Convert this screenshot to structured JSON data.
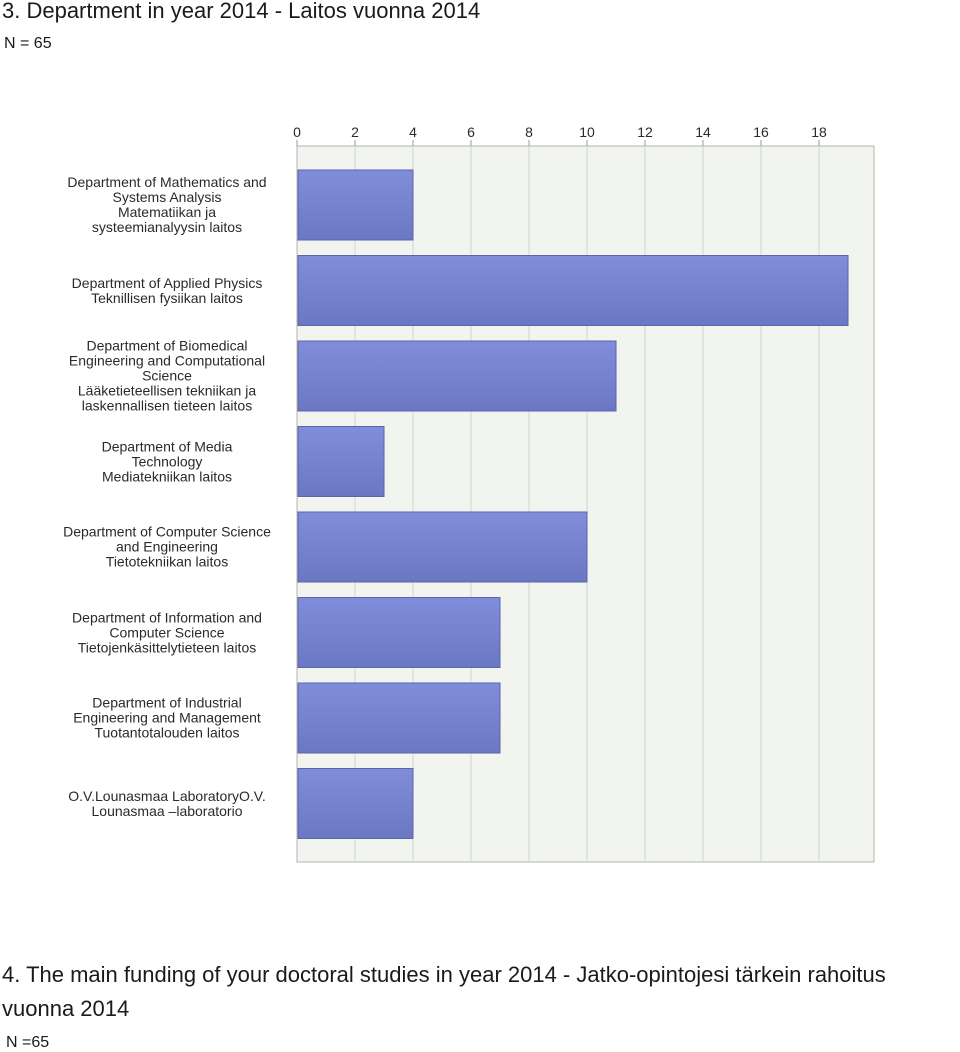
{
  "header": {
    "title": "3. Department in year 2014 - Laitos vuonna 2014",
    "n_label": "N = 65"
  },
  "chart_data": {
    "type": "bar",
    "orientation": "horizontal",
    "categories": [
      [
        "Department of Mathematics and",
        "Systems Analysis",
        "Matematiikan ja",
        "systeemianalyysin laitos"
      ],
      [
        "Department of Applied Physics",
        "Teknillisen fysiikan laitos"
      ],
      [
        "Department of Biomedical",
        "Engineering and Computational",
        "Science",
        "Lääketieteellisen tekniikan ja",
        "laskennallisen tieteen laitos"
      ],
      [
        "Department of Media",
        "Technology",
        "Mediatekniikan laitos"
      ],
      [
        "Department of Computer Science",
        "and Engineering",
        "Tietotekniikan laitos"
      ],
      [
        "Department of Information and",
        "Computer Science",
        "Tietojenkäsittelytieteen laitos"
      ],
      [
        "Department of Industrial",
        "Engineering and Management",
        "Tuotantotalouden laitos"
      ],
      [
        "O.V.Lounasmaa LaboratoryO.V.",
        "Lounasmaa –laboratorio"
      ]
    ],
    "values": [
      4,
      19,
      11,
      3,
      10,
      7,
      7,
      4
    ],
    "x_ticks": [
      "0",
      "2",
      "4",
      "6",
      "8",
      "10",
      "12",
      "14",
      "16",
      "18"
    ],
    "xlim": [
      0,
      20
    ],
    "x_axis_position": "top",
    "grid": true,
    "bar_color": "#7f8ddb",
    "bar_color_dark": "#6a78c4",
    "plot_background": "#f1f4ef"
  },
  "next_section": {
    "title": "4. The main funding of your doctoral studies in year 2014 - Jatko-opintojesi tärkein rahoitus vuonna 2014",
    "n_label": "N =65"
  }
}
